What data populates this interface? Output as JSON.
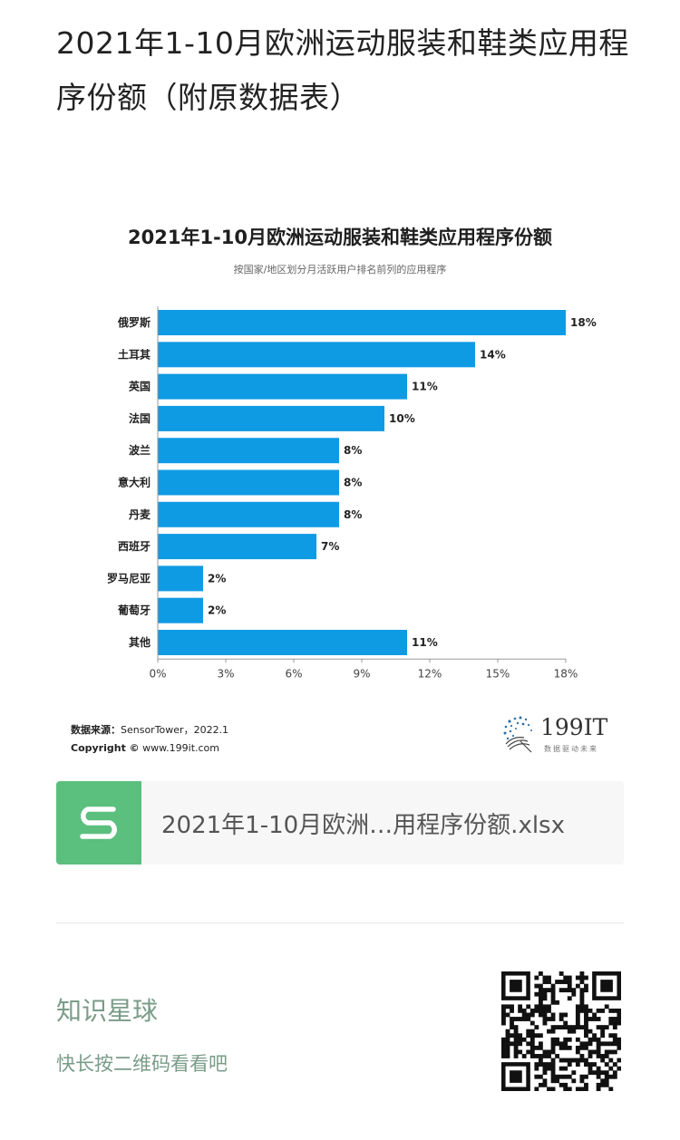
{
  "article": {
    "title": "2021年1-10月欧洲运动服装和鞋类应用程序份额（附原数据表）"
  },
  "chart_data": {
    "type": "bar",
    "orientation": "horizontal",
    "title": "2021年1-10月欧洲运动服装和鞋类应用程序份额",
    "subtitle": "按国家/地区划分月活跃用户排名前列的应用程序",
    "categories": [
      "俄罗斯",
      "土耳其",
      "英国",
      "法国",
      "波兰",
      "意大利",
      "丹麦",
      "西班牙",
      "罗马尼亚",
      "葡萄牙",
      "其他"
    ],
    "values": [
      18,
      14,
      11,
      10,
      8,
      8,
      8,
      7,
      2,
      2,
      11
    ],
    "value_labels": [
      "18%",
      "14%",
      "11%",
      "10%",
      "8%",
      "8%",
      "8%",
      "7%",
      "2%",
      "2%",
      "11%"
    ],
    "xlim": [
      0,
      18
    ],
    "xticks": [
      0,
      3,
      6,
      9,
      12,
      15,
      18
    ],
    "xtick_labels": [
      "0%",
      "3%",
      "6%",
      "9%",
      "12%",
      "15%",
      "18%"
    ],
    "bar_color": "#0f9be3",
    "grid": false
  },
  "source": {
    "label": "数据来源：",
    "text": "SensorTower，2022.1",
    "copyright_label": "Copyright ©",
    "copyright_text": "www.199it.com"
  },
  "brand": {
    "name": "199IT",
    "slogan": "数据驱动未来"
  },
  "file": {
    "icon": "spreadsheet-s-icon",
    "name": "2021年1-10月欧洲…用程序份额.xlsx",
    "icon_color": "#5bbf7e"
  },
  "planet": {
    "title": "知识星球",
    "subtitle": "快长按二维码看看吧",
    "color": "#7a9c88"
  }
}
